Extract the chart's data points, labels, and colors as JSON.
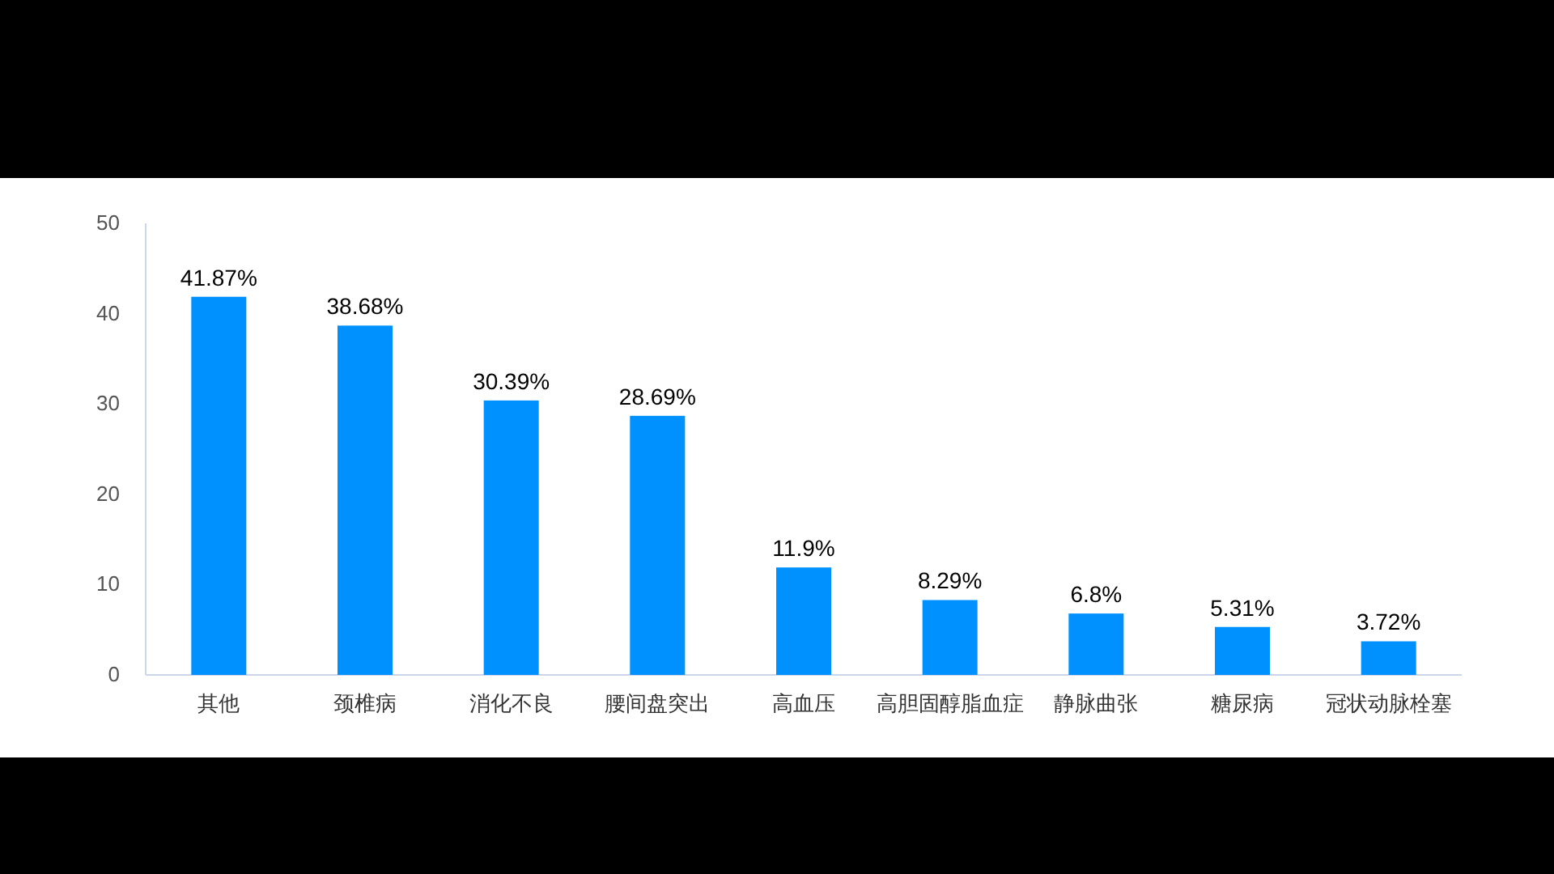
{
  "chart_data": {
    "type": "bar",
    "categories": [
      "其他",
      "颈椎病",
      "消化不良",
      "腰间盘突出",
      "高血压",
      "高胆固醇脂血症",
      "静脉曲张",
      "糖尿病",
      "冠状动脉栓塞"
    ],
    "values": [
      41.87,
      38.68,
      30.39,
      28.69,
      11.9,
      8.29,
      6.8,
      5.31,
      3.72
    ],
    "value_labels": [
      "41.87%",
      "38.68%",
      "30.39%",
      "28.69%",
      "11.9%",
      "8.29%",
      "6.8%",
      "5.31%",
      "3.72%"
    ],
    "color": "#0091ff",
    "ylim": [
      0,
      50
    ],
    "yticks": [
      0,
      10,
      20,
      30,
      40,
      50
    ]
  }
}
